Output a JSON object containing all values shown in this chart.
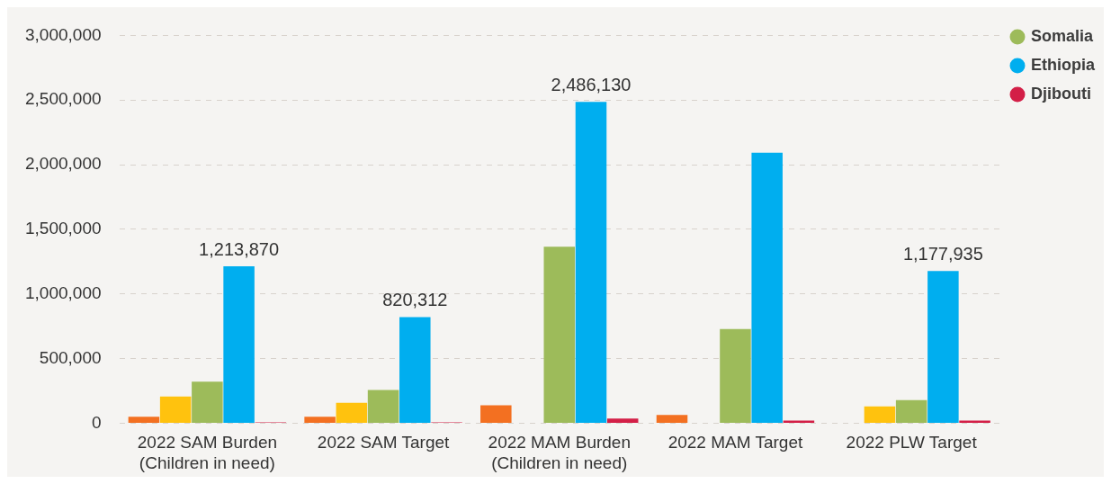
{
  "chart_data": {
    "type": "bar",
    "categories": [
      "2022 SAM Burden (Children in need)",
      "2022 SAM Target",
      "2022 MAM Burden (Children in need)",
      "2022 MAM Target",
      "2022 PLW Target"
    ],
    "series": [
      {
        "color": "#f37021",
        "values": [
          50000,
          50000,
          139000,
          64000,
          null
        ]
      },
      {
        "color": "#ffc20e",
        "values": [
          207000,
          157000,
          null,
          null,
          129000
        ]
      },
      {
        "name": "Somalia",
        "color": "#9dbb5a",
        "values": [
          321000,
          257000,
          1365000,
          729000,
          179000
        ]
      },
      {
        "name": "Ethiopia",
        "color": "#00aeef",
        "values": [
          1213870,
          820312,
          2486130,
          2093000,
          1177935
        ],
        "value_labels": [
          "1,213,870",
          "820,312",
          "2,486,130",
          null,
          "1,177,935"
        ]
      },
      {
        "name": "Djibouti",
        "color": "#d31f47",
        "values": [
          7000,
          7000,
          36000,
          21000,
          21000
        ]
      }
    ],
    "ylim": [
      0,
      3000000
    ],
    "yticks": [
      {
        "value": 0,
        "label": "0"
      },
      {
        "value": 500000,
        "label": "500,000"
      },
      {
        "value": 1000000,
        "label": "1,000,000"
      },
      {
        "value": 1500000,
        "label": "1,500,000"
      },
      {
        "value": 2000000,
        "label": "2,000,000"
      },
      {
        "value": 2500000,
        "label": "2,500,000"
      },
      {
        "value": 3000000,
        "label": "3,000,000"
      }
    ],
    "grid": "y",
    "legend": "top right"
  }
}
